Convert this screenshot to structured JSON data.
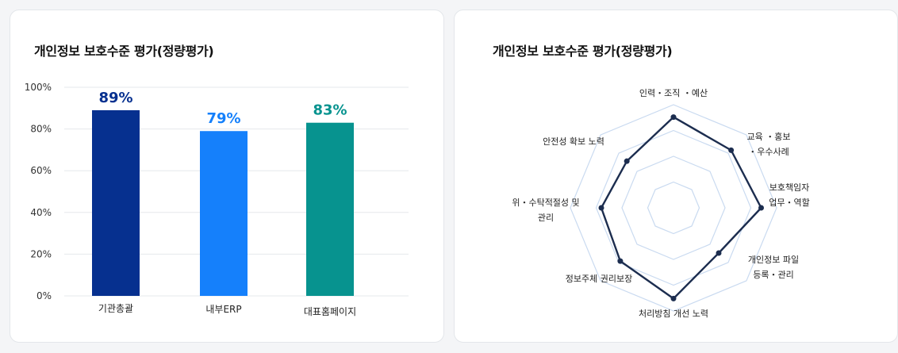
{
  "bar_card": {
    "title": "개인정보 보호수준 평가(정량평가)"
  },
  "radar_card": {
    "title": "개인정보 보호수준 평가(정량평가)"
  },
  "chart_data": [
    {
      "type": "bar",
      "title": "개인정보 보호수준 평가(정량평가)",
      "categories": [
        "기관총괄",
        "내부ERP",
        "대표홈페이지"
      ],
      "values": [
        89,
        79,
        83
      ],
      "value_labels": [
        "89%",
        "79%",
        "83%"
      ],
      "colors": [
        "#06308f",
        "#1580fb",
        "#07938f"
      ],
      "ylim": [
        0,
        100
      ],
      "yticks": [
        "0%",
        "20%",
        "40%",
        "60%",
        "80%",
        "100%"
      ],
      "grid": true,
      "xlabel": "",
      "ylabel": ""
    },
    {
      "type": "radar",
      "title": "개인정보 보호수준 평가(정량평가)",
      "axes": [
        [
          "인력・조직 ・예산"
        ],
        [
          "교육 ・홍보",
          "・우수사례"
        ],
        [
          "보호책임자",
          "업무・역할"
        ],
        [
          "개인정보 파일",
          "등록・관리"
        ],
        [
          "처리방침 개선 노력"
        ],
        [
          "정보주체 권리보장"
        ],
        [
          "위・수탁적절성 및",
          "관리"
        ],
        [
          "안전성 확보 노력"
        ]
      ],
      "values": [
        88,
        79,
        85,
        62,
        88,
        73,
        70,
        64
      ],
      "rlim": [
        0,
        100
      ],
      "grid_levels": 4,
      "line_color": "#1c2d4f",
      "grid_color": "#c9daf0"
    }
  ]
}
